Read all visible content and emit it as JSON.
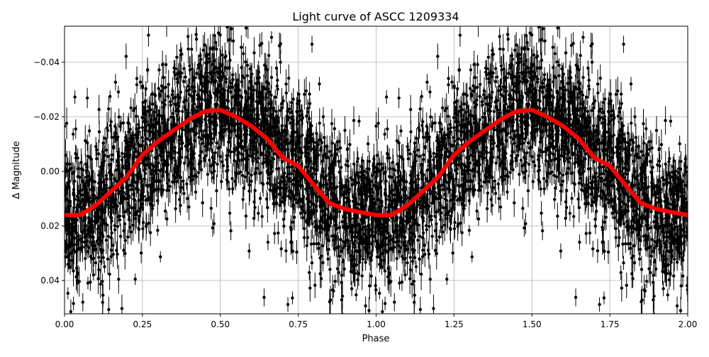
{
  "chart_data": {
    "type": "scatter",
    "title": "Light curve of ASCC 1209334",
    "xlabel": "Phase",
    "ylabel": "Δ Magnitude",
    "xlim": [
      0,
      2
    ],
    "ylim": [
      0.0522,
      -0.0532
    ],
    "y_inverted": true,
    "grid": true,
    "x_ticks": [
      "0.00",
      "0.25",
      "0.50",
      "0.75",
      "1.00",
      "1.25",
      "1.50",
      "1.75",
      "2.00"
    ],
    "x_tick_values": [
      0,
      0.25,
      0.5,
      0.75,
      1,
      1.25,
      1.5,
      1.75,
      2
    ],
    "y_ticks": [
      "−0.04",
      "−0.02",
      "0.00",
      "0.02",
      "0.04"
    ],
    "y_tick_values": [
      -0.04,
      -0.02,
      0,
      0.02,
      0.04
    ],
    "series": [
      {
        "kind": "observations with error bars",
        "color": "#000000"
      },
      {
        "kind": "binned curve",
        "color": "#ff0000",
        "x": [
          0,
          0.05,
          0.1,
          0.15,
          0.2,
          0.25,
          0.3,
          0.35,
          0.4,
          0.45,
          0.5,
          0.55,
          0.6,
          0.65,
          0.7,
          0.75,
          0.8,
          0.85,
          0.9,
          0.95,
          1.0,
          1.05,
          1.1,
          1.15,
          1.2,
          1.25,
          1.3,
          1.35,
          1.4,
          1.45,
          1.5,
          1.55,
          1.6,
          1.65,
          1.7,
          1.75,
          1.8,
          1.85,
          1.9,
          1.95,
          2.0
        ],
        "y": [
          0.016,
          0.016,
          0.0125,
          0.0073,
          0.002,
          -0.006,
          -0.011,
          -0.015,
          -0.019,
          -0.022,
          -0.0225,
          -0.02,
          -0.0166,
          -0.012,
          -0.005,
          -0.002,
          0.005,
          0.0117,
          0.0138,
          0.015,
          0.016,
          0.016,
          0.0125,
          0.0073,
          0.002,
          -0.006,
          -0.011,
          -0.015,
          -0.019,
          -0.022,
          -0.0225,
          -0.02,
          -0.0166,
          -0.012,
          -0.005,
          -0.002,
          0.005,
          0.0117,
          0.0138,
          0.015,
          0.016
        ]
      }
    ]
  }
}
